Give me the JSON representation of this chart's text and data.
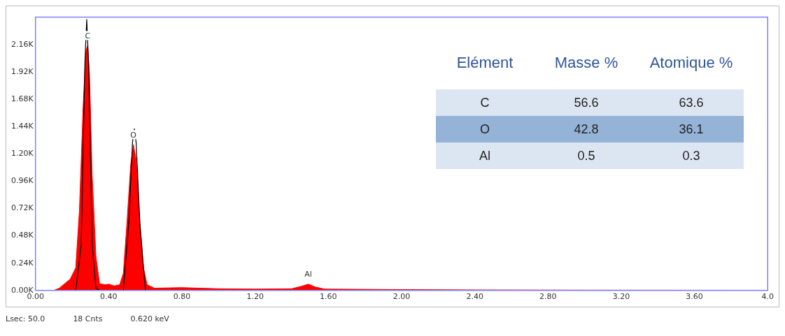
{
  "chart_data": [
    {
      "type": "area",
      "xlim": [
        0,
        4.0
      ],
      "ylim": [
        0,
        2400
      ],
      "xticks": [
        {
          "value": 0,
          "label": "0.00"
        },
        {
          "value": 0.4,
          "label": "0.40"
        },
        {
          "value": 0.8,
          "label": "0.80"
        },
        {
          "value": 1.2,
          "label": "1.20"
        },
        {
          "value": 1.6,
          "label": "1.60"
        },
        {
          "value": 2.0,
          "label": "2.00"
        },
        {
          "value": 2.4,
          "label": "2.40"
        },
        {
          "value": 2.8,
          "label": "2.80"
        },
        {
          "value": 3.2,
          "label": "3.20"
        },
        {
          "value": 3.6,
          "label": "3.60"
        },
        {
          "value": 4.0,
          "label": "4.0"
        }
      ],
      "yticks": [
        {
          "value": 0,
          "label": "0.00K"
        },
        {
          "value": 240,
          "label": "0.24K"
        },
        {
          "value": 480,
          "label": "0.48K"
        },
        {
          "value": 720,
          "label": "0.72K"
        },
        {
          "value": 960,
          "label": "0.96K"
        },
        {
          "value": 1200,
          "label": "1.20K"
        },
        {
          "value": 1440,
          "label": "1.44K"
        },
        {
          "value": 1680,
          "label": "1.68K"
        },
        {
          "value": 1920,
          "label": "1.92K"
        },
        {
          "value": 2160,
          "label": "2.16K"
        }
      ],
      "grid": false,
      "legend": false,
      "series": [
        {
          "color": "#ff0000",
          "x": [
            0,
            0.1,
            0.13,
            0.16,
            0.19,
            0.22,
            0.24,
            0.26,
            0.275,
            0.285,
            0.295,
            0.31,
            0.33,
            0.35,
            0.38,
            0.4,
            0.43,
            0.46,
            0.48,
            0.5,
            0.52,
            0.535,
            0.55,
            0.57,
            0.59,
            0.61,
            0.65,
            0.8,
            1.0,
            1.2,
            1.4,
            1.45,
            1.49,
            1.53,
            1.58,
            2.0,
            2.4,
            3.0,
            4.0
          ],
          "values": [
            0,
            0,
            20,
            60,
            100,
            200,
            700,
            1600,
            2100,
            2150,
            1900,
            1000,
            300,
            60,
            50,
            55,
            40,
            50,
            150,
            600,
            1100,
            1280,
            1150,
            600,
            200,
            50,
            20,
            25,
            15,
            12,
            15,
            35,
            55,
            30,
            12,
            8,
            5,
            3,
            2
          ]
        },
        {
          "type": "line",
          "color": "#000000",
          "x": [
            0.22,
            0.25,
            0.27,
            0.28,
            0.29,
            0.31,
            0.33,
            0.35,
            0.48,
            0.51,
            0.53,
            0.54,
            0.55,
            0.57,
            0.6
          ],
          "values": [
            0,
            400,
            2000,
            2380,
            2000,
            400,
            20,
            0,
            0,
            600,
            1300,
            1420,
            1300,
            600,
            0
          ]
        }
      ],
      "annotations": [
        {
          "text": "C",
          "x": 0.285,
          "y": 2150
        },
        {
          "text": "O",
          "x": 0.535,
          "y": 1280
        },
        {
          "text": "Al",
          "x": 1.49,
          "y": 55
        },
        "Lsec: 50.0",
        "18 Cnts",
        "0.620 keV"
      ]
    },
    {
      "type": "other",
      "annotations": [
        "Elément",
        "Masse %",
        "Atomique %",
        "C",
        "56.6",
        "63.6",
        "O",
        "42.8",
        "36.1",
        "Al",
        "0.5",
        "0.3"
      ]
    }
  ]
}
